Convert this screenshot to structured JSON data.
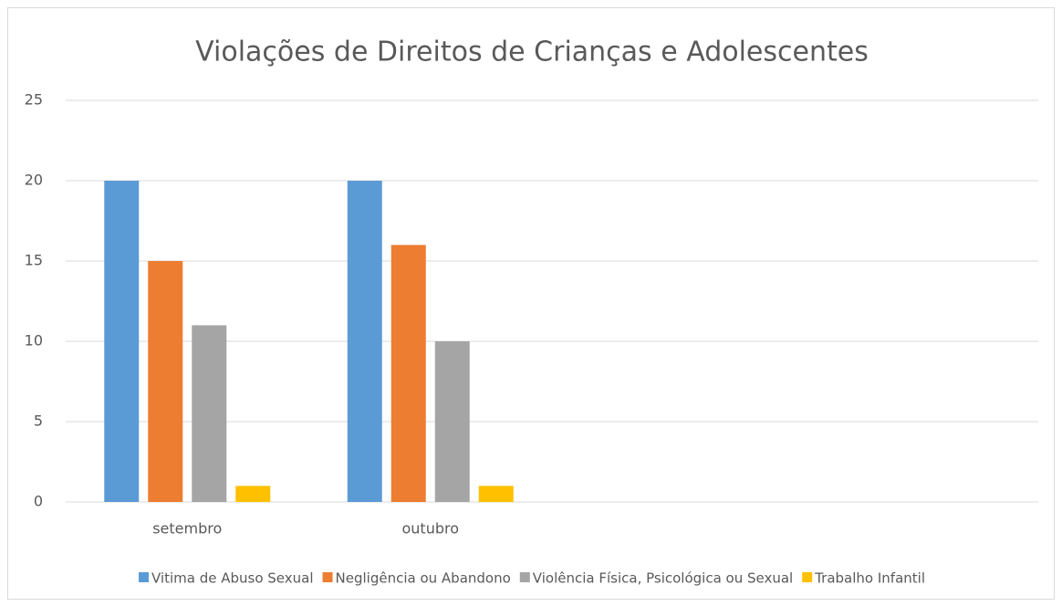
{
  "chart_data": {
    "type": "bar",
    "title": "Violações de Direitos de Crianças e Adolescentes",
    "categories": [
      "setembro",
      "outubro",
      null,
      null
    ],
    "series": [
      {
        "name": "Vitima de Abuso Sexual",
        "color": "#5b9bd5",
        "values": [
          20,
          20,
          null,
          null
        ]
      },
      {
        "name": "Negligência ou Abandono",
        "color": "#ed7d31",
        "values": [
          15,
          16,
          null,
          null
        ]
      },
      {
        "name": "Violência Física, Psicológica ou Sexual",
        "color": "#a5a5a5",
        "values": [
          11,
          10,
          null,
          null
        ]
      },
      {
        "name": "Trabalho Infantil",
        "color": "#ffc000",
        "values": [
          1,
          1,
          null,
          null
        ]
      }
    ],
    "ylim": [
      0,
      25
    ],
    "yticks": [
      0,
      5,
      10,
      15,
      20,
      25
    ],
    "grid": true,
    "legend": "bottom"
  }
}
